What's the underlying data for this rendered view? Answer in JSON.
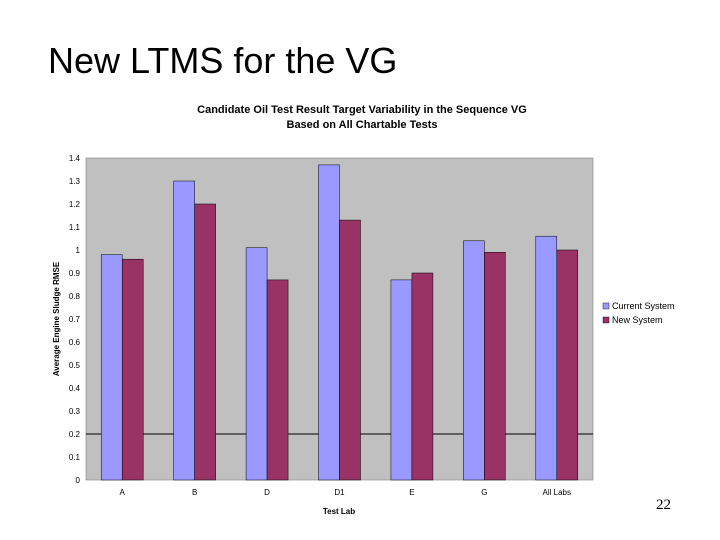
{
  "slide": {
    "title": "New LTMS for the VG",
    "page_number": "22"
  },
  "colors": {
    "plot_background": "#c0c0c0",
    "current_system": "#9999ff",
    "new_system": "#993366",
    "reference_line": "#000000"
  },
  "chart_data": {
    "type": "bar",
    "title": "Candidate Oil Test Result Target Variability in the Sequence VG",
    "subtitle": "Based on All Chartable Tests",
    "xlabel": "Test Lab",
    "ylabel": "Average Engine Sludge RMSE",
    "categories": [
      "A",
      "B",
      "D",
      "D1",
      "E",
      "G",
      "All Labs"
    ],
    "series": [
      {
        "name": "Current System",
        "values": [
          0.98,
          1.3,
          1.01,
          1.37,
          0.87,
          1.04,
          1.06
        ]
      },
      {
        "name": "New System",
        "values": [
          0.96,
          1.2,
          0.87,
          1.13,
          0.9,
          0.99,
          1.0
        ]
      }
    ],
    "yticks": [
      "0",
      "0.1",
      "0.2",
      "0.3",
      "0.4",
      "0.5",
      "0.6",
      "0.7",
      "0.8",
      "0.9",
      "1",
      "1.1",
      "1.2",
      "1.3",
      "1.4"
    ],
    "ylim": [
      0,
      1.4
    ],
    "reference_line": 0.2,
    "grid": false,
    "legend_position": "right"
  }
}
